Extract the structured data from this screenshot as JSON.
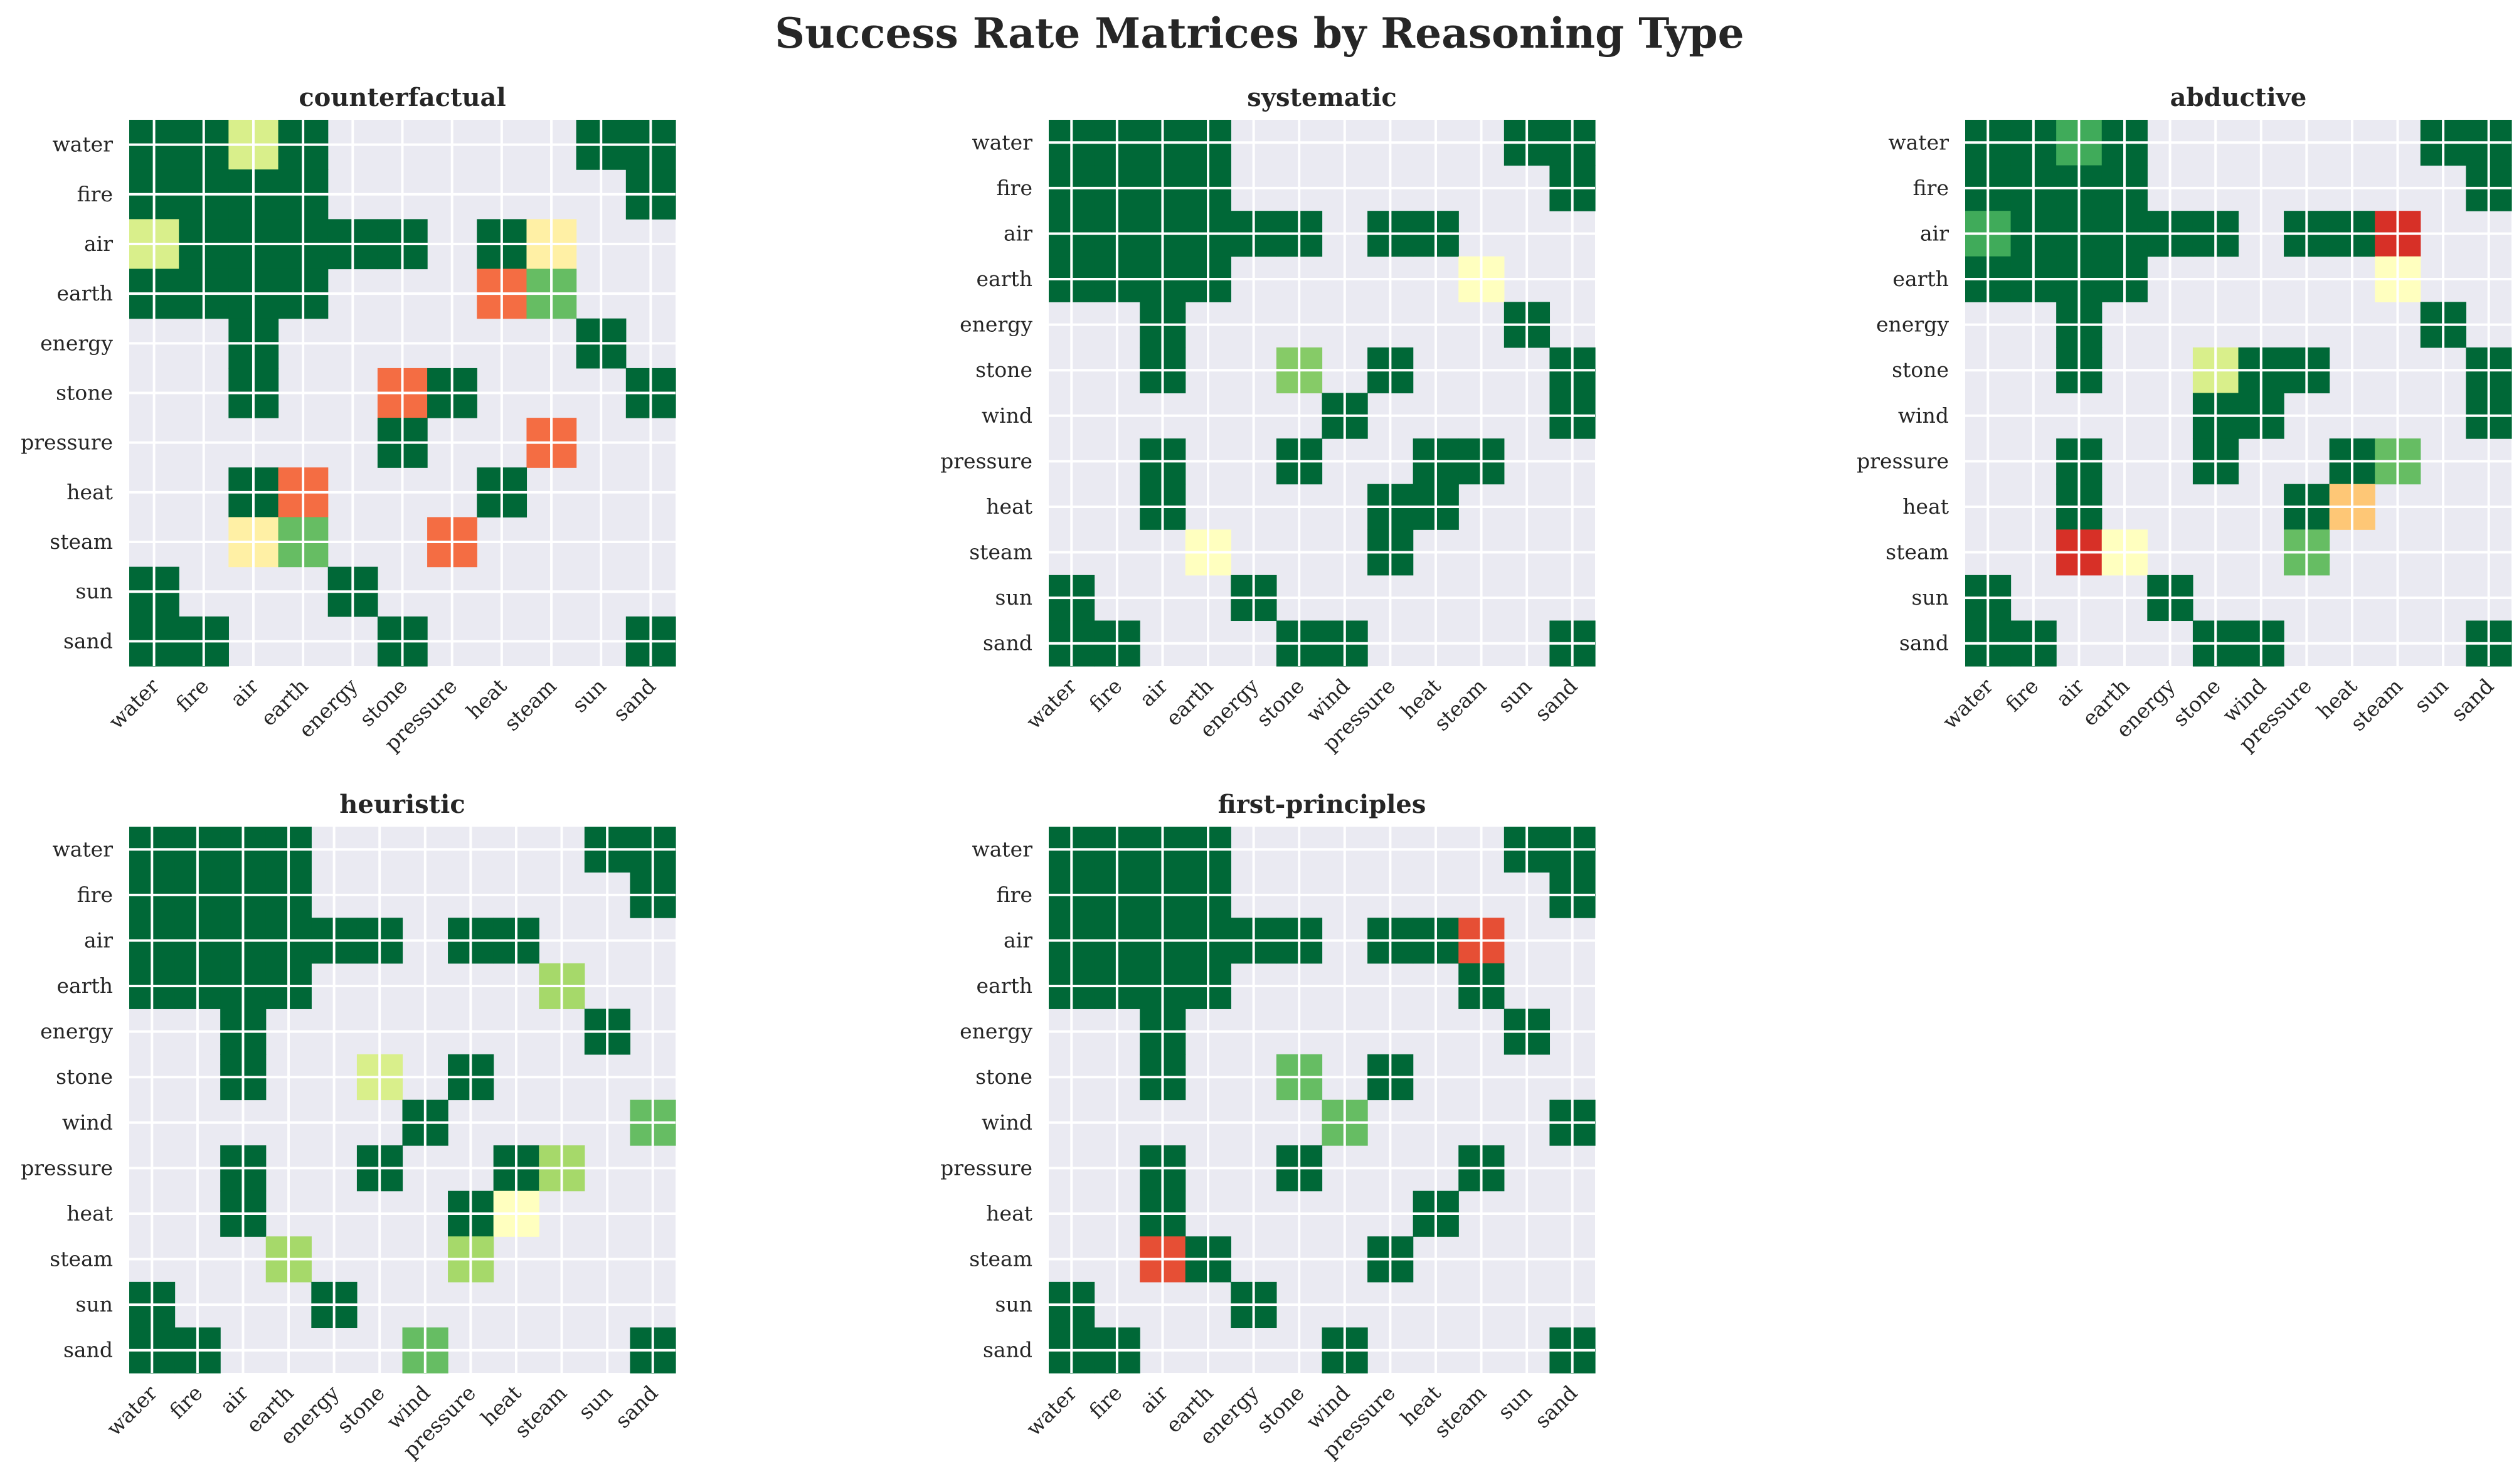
{
  "chart_data": {
    "title": "Success Rate Matrices by Reasoning Type",
    "type": "heatmap",
    "colormap": "RdYlGn",
    "scale": [
      0,
      1
    ],
    "missing_color": "#eaeaf2",
    "panels": [
      {
        "title": "counterfactual",
        "labels": [
          "water",
          "fire",
          "air",
          "earth",
          "energy",
          "stone",
          "pressure",
          "heat",
          "steam",
          "sun",
          "sand"
        ],
        "matrix": [
          [
            1,
            1,
            0.6,
            1,
            null,
            null,
            null,
            null,
            null,
            1,
            1
          ],
          [
            1,
            1,
            1,
            1,
            null,
            null,
            null,
            null,
            null,
            null,
            1
          ],
          [
            0.6,
            1,
            1,
            1,
            1,
            1,
            null,
            1,
            0.45,
            null,
            null
          ],
          [
            1,
            1,
            1,
            1,
            null,
            null,
            null,
            0.2,
            0.8,
            null,
            null
          ],
          [
            null,
            null,
            1,
            null,
            null,
            null,
            null,
            null,
            null,
            1,
            null
          ],
          [
            null,
            null,
            1,
            null,
            null,
            0.2,
            1,
            null,
            null,
            null,
            1
          ],
          [
            null,
            null,
            null,
            null,
            null,
            1,
            null,
            null,
            0.2,
            null,
            null
          ],
          [
            null,
            null,
            1,
            0.2,
            null,
            null,
            null,
            1,
            null,
            null,
            null
          ],
          [
            null,
            null,
            0.45,
            0.8,
            null,
            null,
            0.2,
            null,
            null,
            null,
            null
          ],
          [
            1,
            null,
            null,
            null,
            1,
            null,
            null,
            null,
            null,
            null,
            null
          ],
          [
            1,
            1,
            null,
            null,
            null,
            1,
            null,
            null,
            null,
            null,
            1
          ]
        ]
      },
      {
        "title": "systematic",
        "labels": [
          "water",
          "fire",
          "air",
          "earth",
          "energy",
          "stone",
          "wind",
          "pressure",
          "heat",
          "steam",
          "sun",
          "sand"
        ],
        "matrix": [
          [
            1,
            1,
            1,
            1,
            null,
            null,
            null,
            null,
            null,
            null,
            1,
            1
          ],
          [
            1,
            1,
            1,
            1,
            null,
            null,
            null,
            null,
            null,
            null,
            null,
            1
          ],
          [
            1,
            1,
            1,
            1,
            1,
            1,
            null,
            1,
            1,
            null,
            null,
            null
          ],
          [
            1,
            1,
            1,
            1,
            null,
            null,
            null,
            null,
            null,
            0.5,
            null,
            null
          ],
          [
            null,
            null,
            1,
            null,
            null,
            null,
            null,
            null,
            null,
            null,
            1,
            null
          ],
          [
            null,
            null,
            1,
            null,
            null,
            0.75,
            null,
            1,
            null,
            null,
            null,
            1
          ],
          [
            null,
            null,
            null,
            null,
            null,
            null,
            1,
            null,
            null,
            null,
            null,
            1
          ],
          [
            null,
            null,
            1,
            null,
            null,
            1,
            null,
            null,
            1,
            1,
            null,
            null
          ],
          [
            null,
            null,
            1,
            null,
            null,
            null,
            null,
            1,
            1,
            null,
            null,
            null
          ],
          [
            null,
            null,
            null,
            0.5,
            null,
            null,
            null,
            1,
            null,
            null,
            null,
            null
          ],
          [
            1,
            null,
            null,
            null,
            1,
            null,
            null,
            null,
            null,
            null,
            null,
            null
          ],
          [
            1,
            1,
            null,
            null,
            null,
            1,
            1,
            null,
            null,
            null,
            null,
            1
          ]
        ]
      },
      {
        "title": "abductive",
        "labels": [
          "water",
          "fire",
          "air",
          "earth",
          "energy",
          "stone",
          "wind",
          "pressure",
          "heat",
          "steam",
          "sun",
          "sand"
        ],
        "matrix": [
          [
            1,
            1,
            0.85,
            1,
            null,
            null,
            null,
            null,
            null,
            null,
            1,
            1
          ],
          [
            1,
            1,
            1,
            1,
            null,
            null,
            null,
            null,
            null,
            null,
            null,
            1
          ],
          [
            0.85,
            1,
            1,
            1,
            1,
            1,
            null,
            1,
            1,
            0.1,
            null,
            null
          ],
          [
            1,
            1,
            1,
            1,
            null,
            null,
            null,
            null,
            null,
            0.5,
            null,
            null
          ],
          [
            null,
            null,
            1,
            null,
            null,
            null,
            null,
            null,
            null,
            null,
            1,
            null
          ],
          [
            null,
            null,
            1,
            null,
            null,
            0.6,
            1,
            1,
            null,
            null,
            null,
            1
          ],
          [
            null,
            null,
            null,
            null,
            null,
            1,
            1,
            null,
            null,
            null,
            null,
            1
          ],
          [
            null,
            null,
            1,
            null,
            null,
            1,
            null,
            null,
            1,
            0.8,
            null,
            null
          ],
          [
            null,
            null,
            1,
            null,
            null,
            null,
            null,
            1,
            0.35,
            null,
            null,
            null
          ],
          [
            null,
            null,
            0.1,
            0.5,
            null,
            null,
            null,
            0.8,
            null,
            null,
            null,
            null
          ],
          [
            1,
            null,
            null,
            null,
            1,
            null,
            null,
            null,
            null,
            null,
            null,
            null
          ],
          [
            1,
            1,
            null,
            null,
            null,
            1,
            1,
            null,
            null,
            null,
            null,
            1
          ]
        ]
      },
      {
        "title": "heuristic",
        "labels": [
          "water",
          "fire",
          "air",
          "earth",
          "energy",
          "stone",
          "wind",
          "pressure",
          "heat",
          "steam",
          "sun",
          "sand"
        ],
        "matrix": [
          [
            1,
            1,
            1,
            1,
            null,
            null,
            null,
            null,
            null,
            null,
            1,
            1
          ],
          [
            1,
            1,
            1,
            1,
            null,
            null,
            null,
            null,
            null,
            null,
            null,
            1
          ],
          [
            1,
            1,
            1,
            1,
            1,
            1,
            null,
            1,
            1,
            null,
            null,
            null
          ],
          [
            1,
            1,
            1,
            1,
            null,
            null,
            null,
            null,
            null,
            0.7,
            null,
            null
          ],
          [
            null,
            null,
            1,
            null,
            null,
            null,
            null,
            null,
            null,
            null,
            1,
            null
          ],
          [
            null,
            null,
            1,
            null,
            null,
            0.6,
            null,
            1,
            null,
            null,
            null,
            null
          ],
          [
            null,
            null,
            null,
            null,
            null,
            null,
            1,
            null,
            null,
            null,
            null,
            0.8
          ],
          [
            null,
            null,
            1,
            null,
            null,
            1,
            null,
            null,
            1,
            0.7,
            null,
            null
          ],
          [
            null,
            null,
            1,
            null,
            null,
            null,
            null,
            1,
            0.5,
            null,
            null,
            null
          ],
          [
            null,
            null,
            null,
            0.7,
            null,
            null,
            null,
            0.7,
            null,
            null,
            null,
            null
          ],
          [
            1,
            null,
            null,
            null,
            1,
            null,
            null,
            null,
            null,
            null,
            null,
            null
          ],
          [
            1,
            1,
            null,
            null,
            null,
            null,
            0.8,
            null,
            null,
            null,
            null,
            1
          ]
        ]
      },
      {
        "title": "first-principles",
        "labels": [
          "water",
          "fire",
          "air",
          "earth",
          "energy",
          "stone",
          "wind",
          "pressure",
          "heat",
          "steam",
          "sun",
          "sand"
        ],
        "matrix": [
          [
            1,
            1,
            1,
            1,
            null,
            null,
            null,
            null,
            null,
            null,
            1,
            1
          ],
          [
            1,
            1,
            1,
            1,
            null,
            null,
            null,
            null,
            null,
            null,
            null,
            1
          ],
          [
            1,
            1,
            1,
            1,
            1,
            1,
            null,
            1,
            1,
            0.15,
            null,
            null
          ],
          [
            1,
            1,
            1,
            1,
            null,
            null,
            null,
            null,
            null,
            1,
            null,
            null
          ],
          [
            null,
            null,
            1,
            null,
            null,
            null,
            null,
            null,
            null,
            null,
            1,
            null
          ],
          [
            null,
            null,
            1,
            null,
            null,
            0.8,
            null,
            1,
            null,
            null,
            null,
            null
          ],
          [
            null,
            null,
            null,
            null,
            null,
            null,
            0.8,
            null,
            null,
            null,
            null,
            1
          ],
          [
            null,
            null,
            1,
            null,
            null,
            1,
            null,
            null,
            null,
            1,
            null,
            null
          ],
          [
            null,
            null,
            1,
            null,
            null,
            null,
            null,
            null,
            1,
            null,
            null,
            null
          ],
          [
            null,
            null,
            0.15,
            1,
            null,
            null,
            null,
            1,
            null,
            null,
            null,
            null
          ],
          [
            1,
            null,
            null,
            null,
            1,
            null,
            null,
            null,
            null,
            null,
            null,
            null
          ],
          [
            1,
            1,
            null,
            null,
            null,
            null,
            1,
            null,
            null,
            null,
            null,
            1
          ]
        ]
      }
    ]
  }
}
